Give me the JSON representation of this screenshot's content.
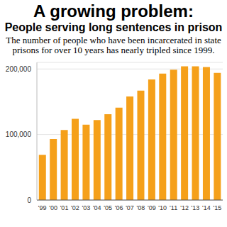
{
  "chart_data": {
    "type": "bar",
    "title": "A growing problem:",
    "subtitle": "People serving long sentences in prison",
    "description": "The number of people who have been incarcerated in state prisons for over 10 years has nearly tripled since 1999.",
    "categories": [
      "'99",
      "'00",
      "'01",
      "'02",
      "'03",
      "'04",
      "'05",
      "'06",
      "'07",
      "'08",
      "'09",
      "'10",
      "'11",
      "'12",
      "'13",
      "'14",
      "'15"
    ],
    "values": [
      69000,
      93000,
      107000,
      124000,
      115000,
      122000,
      131000,
      141000,
      158000,
      167000,
      184000,
      193000,
      199000,
      204000,
      204000,
      203000,
      194000
    ],
    "color": "#f5a01a",
    "ylim": [
      0,
      210000
    ],
    "yticks": [
      0,
      {
        "value": 100000,
        "label": "100,000"
      },
      {
        "value": 200000,
        "label": "200,000"
      }
    ],
    "grid": true
  }
}
